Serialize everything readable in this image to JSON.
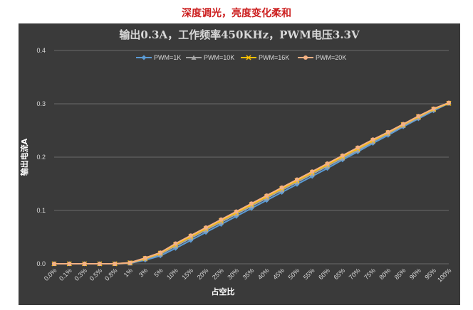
{
  "heading": "深度调光，亮度变化柔和",
  "colors": {
    "background": "#3a3a3a",
    "grid": "#6a6a6a",
    "heading": "#cc1f1f"
  },
  "chart_data": {
    "type": "line",
    "title": "输出0.3A，工作频率450KHz，PWM电压3.3V",
    "xlabel": "占空比",
    "ylabel": "输出电流A",
    "ylim": [
      0,
      0.4
    ],
    "yticks": [
      "0.0",
      "0.1",
      "0.2",
      "0.3",
      "0.4"
    ],
    "grid": true,
    "legend_position": "top-center",
    "categories": [
      "0.0%",
      "0.1%",
      "0.3%",
      "0.5%",
      "0.8%",
      "1%",
      "3%",
      "5%",
      "10%",
      "15%",
      "20%",
      "25%",
      "30%",
      "35%",
      "40%",
      "45%",
      "50%",
      "55%",
      "60%",
      "65%",
      "70%",
      "75%",
      "80%",
      "85%",
      "90%",
      "95%",
      "100%"
    ],
    "series": [
      {
        "name": "PWM=1K",
        "color": "#5b9bd5",
        "marker": "diamond",
        "values": [
          0,
          0,
          0,
          0,
          0,
          0.001,
          0.007,
          0.015,
          0.029,
          0.044,
          0.059,
          0.074,
          0.089,
          0.104,
          0.119,
          0.134,
          0.149,
          0.164,
          0.179,
          0.195,
          0.21,
          0.226,
          0.241,
          0.257,
          0.272,
          0.287,
          0.301
        ]
      },
      {
        "name": "PWM=10K",
        "color": "#a5a5a5",
        "marker": "triangle",
        "values": [
          0,
          0,
          0,
          0,
          0,
          0.001,
          0.009,
          0.018,
          0.033,
          0.048,
          0.063,
          0.078,
          0.093,
          0.108,
          0.123,
          0.138,
          0.153,
          0.168,
          0.183,
          0.198,
          0.213,
          0.229,
          0.244,
          0.259,
          0.274,
          0.289,
          0.301
        ]
      },
      {
        "name": "PWM=16K",
        "color": "#ffc000",
        "marker": "x",
        "values": [
          0,
          0,
          0,
          0,
          0,
          0.002,
          0.01,
          0.02,
          0.036,
          0.051,
          0.066,
          0.081,
          0.096,
          0.111,
          0.126,
          0.141,
          0.156,
          0.171,
          0.186,
          0.201,
          0.216,
          0.231,
          0.246,
          0.261,
          0.276,
          0.29,
          0.301
        ]
      },
      {
        "name": "PWM=20K",
        "color": "#f4b183",
        "marker": "circle",
        "values": [
          0,
          0,
          0,
          0,
          0,
          0.002,
          0.011,
          0.021,
          0.038,
          0.053,
          0.068,
          0.083,
          0.098,
          0.113,
          0.128,
          0.143,
          0.158,
          0.173,
          0.188,
          0.203,
          0.218,
          0.233,
          0.247,
          0.262,
          0.277,
          0.291,
          0.302
        ]
      }
    ]
  }
}
